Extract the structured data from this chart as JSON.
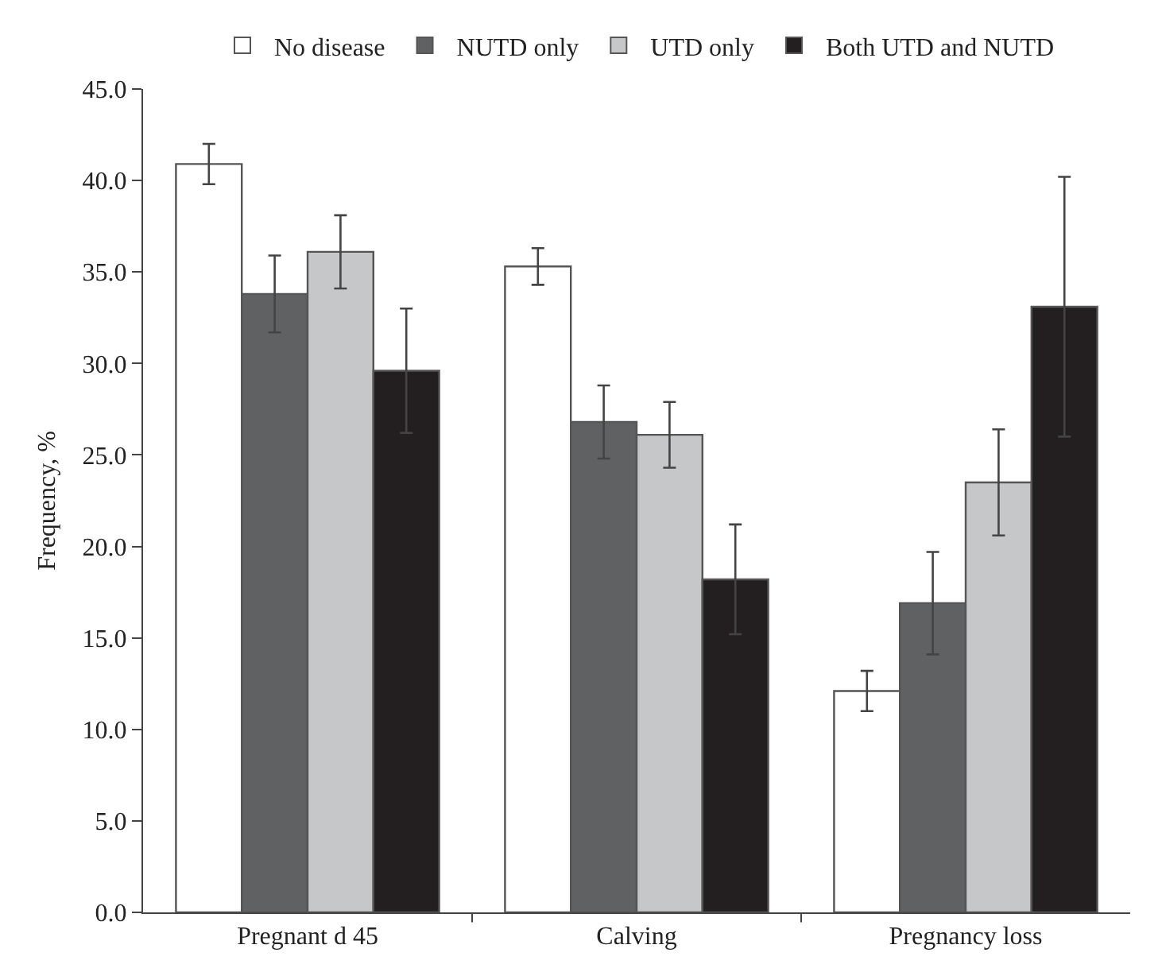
{
  "chart_data": {
    "type": "bar",
    "ylabel": "Frequency, %",
    "categories": [
      "Pregnant d 45",
      "Calving",
      "Pregnancy loss"
    ],
    "series": [
      {
        "name": "No disease",
        "color": "#ffffff",
        "values": [
          40.9,
          35.3,
          12.1
        ],
        "errors": [
          1.1,
          1.0,
          1.1
        ]
      },
      {
        "name": "NUTD only",
        "color": "#5f6163",
        "values": [
          33.8,
          26.8,
          16.9
        ],
        "errors": [
          2.1,
          2.0,
          2.8
        ]
      },
      {
        "name": "UTD only",
        "color": "#c5c7c9",
        "values": [
          36.1,
          26.1,
          23.5
        ],
        "errors": [
          2.0,
          1.8,
          2.9
        ]
      },
      {
        "name": "Both UTD and NUTD",
        "color": "#231f20",
        "values": [
          29.6,
          18.2,
          33.1
        ],
        "errors": [
          3.4,
          3.0,
          7.1
        ]
      }
    ],
    "ylim": [
      0,
      45
    ],
    "yticks": [
      {
        "value": 0,
        "label": "0.0"
      },
      {
        "value": 5,
        "label": "5.0"
      },
      {
        "value": 10,
        "label": "10.0"
      },
      {
        "value": 15,
        "label": "15.0"
      },
      {
        "value": 20,
        "label": "20.0"
      },
      {
        "value": 25,
        "label": "25.0"
      },
      {
        "value": 30,
        "label": "30.0"
      },
      {
        "value": 35,
        "label": "35.0"
      },
      {
        "value": 40,
        "label": "40.0"
      },
      {
        "value": 45,
        "label": "45.0"
      }
    ],
    "grid": false,
    "legend": "top",
    "marker": "square"
  }
}
